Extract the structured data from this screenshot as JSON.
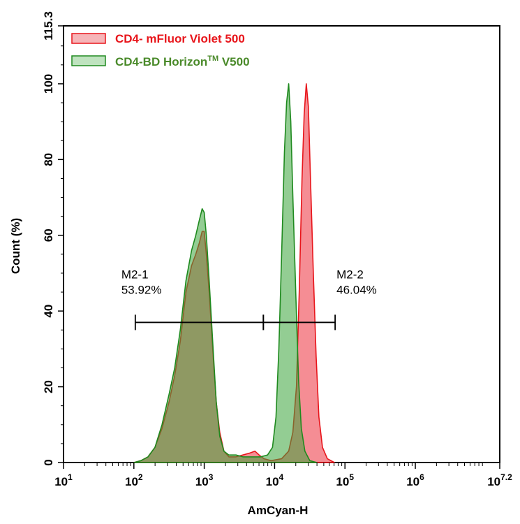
{
  "chart_data": {
    "type": "area",
    "xlabel": "AmCyan-H",
    "ylabel": "Count  (%)",
    "xscale": "log",
    "xlim": [
      1,
      7.2
    ],
    "ylim": [
      0,
      115.3
    ],
    "grid": false,
    "legend_placement": "top-left",
    "x_ticks": [
      {
        "base": "10",
        "exp": "1",
        "value": 1
      },
      {
        "base": "10",
        "exp": "2",
        "value": 2
      },
      {
        "base": "10",
        "exp": "3",
        "value": 3
      },
      {
        "base": "10",
        "exp": "4",
        "value": 4
      },
      {
        "base": "10",
        "exp": "5",
        "value": 5
      },
      {
        "base": "10",
        "exp": "6",
        "value": 6
      },
      {
        "base": "10",
        "exp": "7.2",
        "value": 7.2
      }
    ],
    "y_ticks": [
      {
        "label": "0",
        "value": 0
      },
      {
        "label": "20",
        "value": 20
      },
      {
        "label": "40",
        "value": 40
      },
      {
        "label": "60",
        "value": 60
      },
      {
        "label": "80",
        "value": 80
      },
      {
        "label": "100",
        "value": 100
      },
      {
        "label": "115.3",
        "value": 115.3
      }
    ],
    "series": [
      {
        "name": "CD4- mFluor  Violet 500",
        "name_sup": "",
        "name_suffix": "",
        "color": "#e8151b",
        "fill": "#f0505a",
        "fill_opacity": 0.65,
        "points": [
          [
            2.0,
            0
          ],
          [
            2.1,
            0.5
          ],
          [
            2.2,
            1.5
          ],
          [
            2.3,
            4
          ],
          [
            2.4,
            9
          ],
          [
            2.5,
            16
          ],
          [
            2.58,
            23
          ],
          [
            2.66,
            32
          ],
          [
            2.74,
            45
          ],
          [
            2.82,
            52
          ],
          [
            2.88,
            55
          ],
          [
            2.93,
            58
          ],
          [
            2.97,
            61
          ],
          [
            3.0,
            61
          ],
          [
            3.03,
            55
          ],
          [
            3.07,
            45
          ],
          [
            3.12,
            30
          ],
          [
            3.17,
            16
          ],
          [
            3.22,
            8
          ],
          [
            3.28,
            3
          ],
          [
            3.35,
            1.5
          ],
          [
            3.45,
            1.5
          ],
          [
            3.55,
            2
          ],
          [
            3.65,
            2.5
          ],
          [
            3.72,
            3
          ],
          [
            3.78,
            2
          ],
          [
            3.85,
            1
          ],
          [
            3.95,
            0.5
          ],
          [
            4.1,
            1
          ],
          [
            4.2,
            3
          ],
          [
            4.26,
            8
          ],
          [
            4.31,
            20
          ],
          [
            4.35,
            45
          ],
          [
            4.39,
            75
          ],
          [
            4.42,
            92
          ],
          [
            4.45,
            100
          ],
          [
            4.48,
            94
          ],
          [
            4.51,
            75
          ],
          [
            4.55,
            50
          ],
          [
            4.59,
            28
          ],
          [
            4.63,
            12
          ],
          [
            4.68,
            4
          ],
          [
            4.75,
            1
          ],
          [
            4.85,
            0
          ]
        ]
      },
      {
        "name": "CD4-BD Horizon",
        "name_sup": "TM",
        "name_suffix": " V500",
        "color": "#1f8a1f",
        "fill": "#3aa43a",
        "fill_opacity": 0.55,
        "points": [
          [
            2.0,
            0
          ],
          [
            2.1,
            0.5
          ],
          [
            2.2,
            1.5
          ],
          [
            2.3,
            4
          ],
          [
            2.4,
            10
          ],
          [
            2.5,
            18
          ],
          [
            2.58,
            25
          ],
          [
            2.66,
            35
          ],
          [
            2.74,
            48
          ],
          [
            2.82,
            56
          ],
          [
            2.88,
            60
          ],
          [
            2.93,
            64
          ],
          [
            2.97,
            67
          ],
          [
            3.0,
            66
          ],
          [
            3.03,
            60
          ],
          [
            3.07,
            48
          ],
          [
            3.12,
            32
          ],
          [
            3.17,
            16
          ],
          [
            3.22,
            7
          ],
          [
            3.28,
            3
          ],
          [
            3.35,
            2
          ],
          [
            3.45,
            2
          ],
          [
            3.55,
            1.5
          ],
          [
            3.65,
            1.5
          ],
          [
            3.72,
            1.5
          ],
          [
            3.8,
            1.5
          ],
          [
            3.9,
            2
          ],
          [
            3.97,
            4
          ],
          [
            4.02,
            12
          ],
          [
            4.06,
            30
          ],
          [
            4.1,
            55
          ],
          [
            4.14,
            82
          ],
          [
            4.17,
            95
          ],
          [
            4.2,
            100
          ],
          [
            4.23,
            90
          ],
          [
            4.26,
            70
          ],
          [
            4.3,
            45
          ],
          [
            4.34,
            22
          ],
          [
            4.38,
            9
          ],
          [
            4.43,
            3
          ],
          [
            4.5,
            0.5
          ],
          [
            4.6,
            0
          ]
        ]
      }
    ],
    "gates": [
      {
        "name": "M2-1",
        "percent": "53.92%",
        "x_start": 2.02,
        "x_end": 3.84,
        "y": 37
      },
      {
        "name": "M2-2",
        "percent": "46.04%",
        "x_start": 3.84,
        "x_end": 4.86,
        "y": 37
      }
    ]
  }
}
